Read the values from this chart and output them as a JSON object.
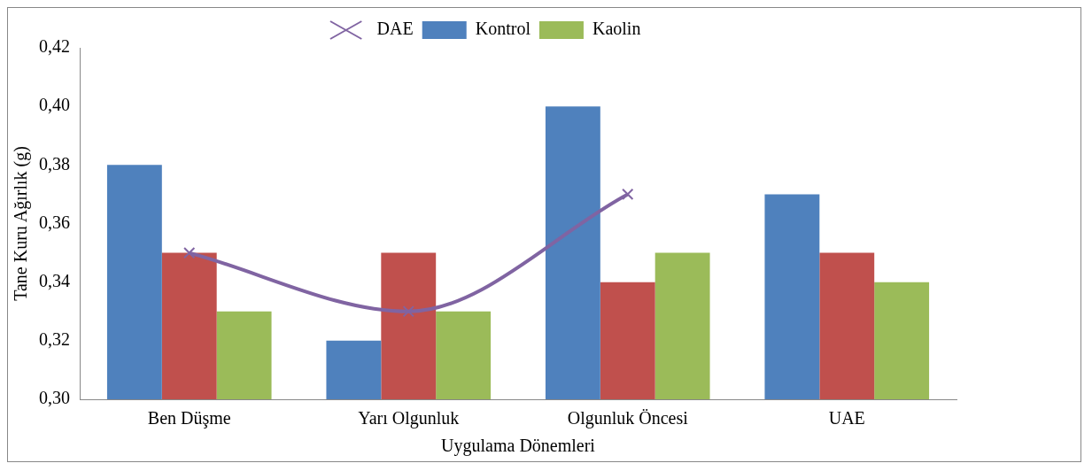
{
  "chart_data": {
    "type": "bar",
    "xlabel": "Uygulama Dönemleri",
    "ylabel": "Tane Kuru Ağırlık (g)",
    "categories": [
      "Ben Düşme",
      "Yarı Olgunluk",
      "Olgunluk Öncesi",
      "UAE"
    ],
    "series": [
      {
        "name": "Kontrol",
        "color": "#4f81bd",
        "values": [
          0.38,
          0.32,
          0.4,
          0.37
        ]
      },
      {
        "color": "#c0504d",
        "values": [
          0.35,
          0.35,
          0.34,
          0.35
        ]
      },
      {
        "name": "Kaolin",
        "color": "#9bbb59",
        "values": [
          0.33,
          0.33,
          0.35,
          0.34
        ]
      },
      {
        "name": "DAE",
        "type": "line",
        "color": "#8064a2",
        "marker": "cross",
        "values": [
          0.35,
          0.33,
          0.37,
          null
        ]
      }
    ],
    "ylim": [
      0.3,
      0.42
    ],
    "yticks": [
      {
        "value": 0.3,
        "label": "0,30"
      },
      {
        "value": 0.32,
        "label": "0,32"
      },
      {
        "value": 0.34,
        "label": "0,34"
      },
      {
        "value": 0.36,
        "label": "0,36"
      },
      {
        "value": 0.38,
        "label": "0,38"
      },
      {
        "value": 0.4,
        "label": "0,40"
      },
      {
        "value": 0.42,
        "label": "0,42"
      }
    ],
    "grid": false,
    "legend": "top"
  }
}
